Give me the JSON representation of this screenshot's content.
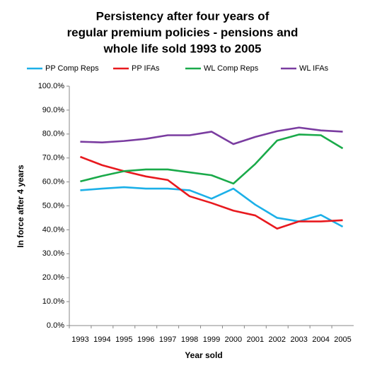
{
  "chart_data": {
    "type": "line",
    "title": [
      "Persistency after four years of",
      "regular premium policies - pensions and",
      "whole life sold 1993 to 2005"
    ],
    "x_label": "Year sold",
    "y_label": "In force after 4 years",
    "categories": [
      "1993",
      "1994",
      "1995",
      "1996",
      "1997",
      "1998",
      "1999",
      "2000",
      "2001",
      "2002",
      "2003",
      "2004",
      "2005"
    ],
    "series": [
      {
        "name": "PP Comp Reps",
        "color": "#1cb0e8",
        "values": [
          56.5,
          57.2,
          57.8,
          57.2,
          57.2,
          56.5,
          53,
          57.2,
          50.5,
          45,
          43.5,
          46.2,
          41.3
        ]
      },
      {
        "name": "PP IFAs",
        "color": "#e8191e",
        "values": [
          70.5,
          67,
          64.5,
          62.3,
          60.8,
          54,
          51.2,
          48,
          46,
          40.5,
          43.5,
          43.5,
          44
        ]
      },
      {
        "name": "WL Comp Reps",
        "color": "#1aaa4a",
        "values": [
          60.2,
          62.5,
          64.5,
          65.2,
          65.2,
          64,
          62.8,
          59.3,
          67.5,
          77.3,
          79.8,
          79.5,
          74
        ]
      },
      {
        "name": "WL IFAs",
        "color": "#7a3ca0",
        "values": [
          76.8,
          76.5,
          77.1,
          78,
          79.5,
          79.5,
          81,
          75.8,
          78.8,
          81.2,
          82.7,
          81.5,
          81
        ]
      }
    ],
    "ylim": [
      0,
      100
    ],
    "yticks": [
      {
        "value": 0,
        "label": "0.0%"
      },
      {
        "value": 10,
        "label": "10.0%"
      },
      {
        "value": 20,
        "label": "20.0%"
      },
      {
        "value": 30,
        "label": "30.0%"
      },
      {
        "value": 40,
        "label": "40.0%"
      },
      {
        "value": 50,
        "label": "50.0%"
      },
      {
        "value": 60,
        "label": "60.0%"
      },
      {
        "value": 70,
        "label": "70.0%"
      },
      {
        "value": 80,
        "label": "80.0%"
      },
      {
        "value": 90,
        "label": "90.0%"
      },
      {
        "value": 100,
        "label": "100.0%"
      }
    ],
    "grid": false,
    "legend": "top"
  }
}
